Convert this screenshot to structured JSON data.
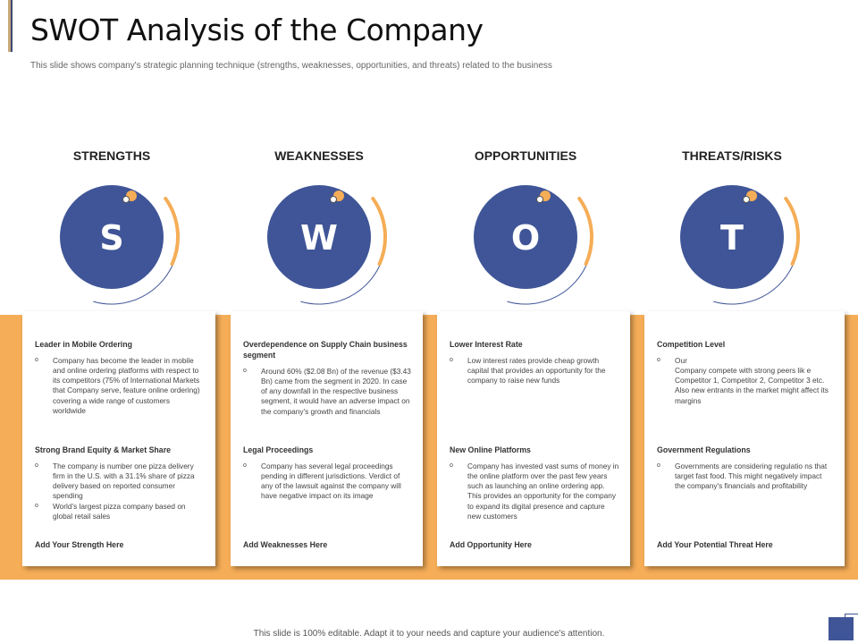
{
  "header": {
    "title": "SWOT Analysis of the Company",
    "subtitle": "This slide shows company's strategic planning technique (strengths, weaknesses, opportunities, and threats) related to the business"
  },
  "colors": {
    "primary": "#3f5597",
    "accent": "#f5ad57"
  },
  "columns": [
    {
      "heading": "STRENGTHS",
      "letter": "S",
      "sections": [
        {
          "title": "Leader in Mobile Ordering",
          "bullets": [
            "Company has become the leader in mobile and online ordering platforms with respect to its competitors (75% of International Markets that Company serve, feature online ordering) covering a wide range of customers worldwide"
          ]
        },
        {
          "title": "Strong Brand Equity & Market Share",
          "bullets": [
            "The company is number one pizza delivery firm in the U.S. with a 31.1% share of pizza delivery based on reported consumer spending",
            "World's largest pizza company based on global retail sales"
          ]
        }
      ],
      "add": "Add Your Strength Here"
    },
    {
      "heading": "WEAKNESSES",
      "letter": "W",
      "sections": [
        {
          "title": "Overdependence on Supply Chain business segment",
          "bullets": [
            "Around 60% ($2.08 Bn) of the revenue ($3.43 Bn) came from the segment in 2020. In case of any downfall in the respective business segment, it would have an adverse impact on the company's growth and financials"
          ]
        },
        {
          "title": "Legal Proceedings",
          "bullets": [
            "Company has several legal proceedings pending in different jurisdictions. Verdict of any of the lawsuit against the company will have negative impact on its image"
          ]
        }
      ],
      "add": "Add Weaknesses Here"
    },
    {
      "heading": "OPPORTUNITIES",
      "letter": "O",
      "sections": [
        {
          "title": "Lower Interest Rate",
          "bullets": [
            "Low interest rates provide cheap growth capital that provides an opportunity for the company to raise new funds"
          ]
        },
        {
          "title": "New Online Platforms",
          "bullets": [
            "Company has invested vast sums of money in the online platform over the past few years such as launching an online ordering app. This provides an opportunity for the company to expand its digital presence and capture new customers"
          ]
        }
      ],
      "add": "Add Opportunity Here"
    },
    {
      "heading": "THREATS/RISKS",
      "letter": "T",
      "sections": [
        {
          "title": "Competition Level",
          "bullets": [
            "Our\nCompany compete with strong peers lik e Competitor 1, Competitor 2, Competitor 3 etc. Also new entrants in the market might affect its margins"
          ]
        },
        {
          "title": "Government Regulations",
          "bullets": [
            "Governments are considering regulatio ns that target fast food. This might negatively impact the company's financials and profitability"
          ]
        }
      ],
      "add": "Add Your Potential Threat Here"
    }
  ],
  "footer": "This slide is 100% editable. Adapt it to your needs and capture your audience's attention."
}
